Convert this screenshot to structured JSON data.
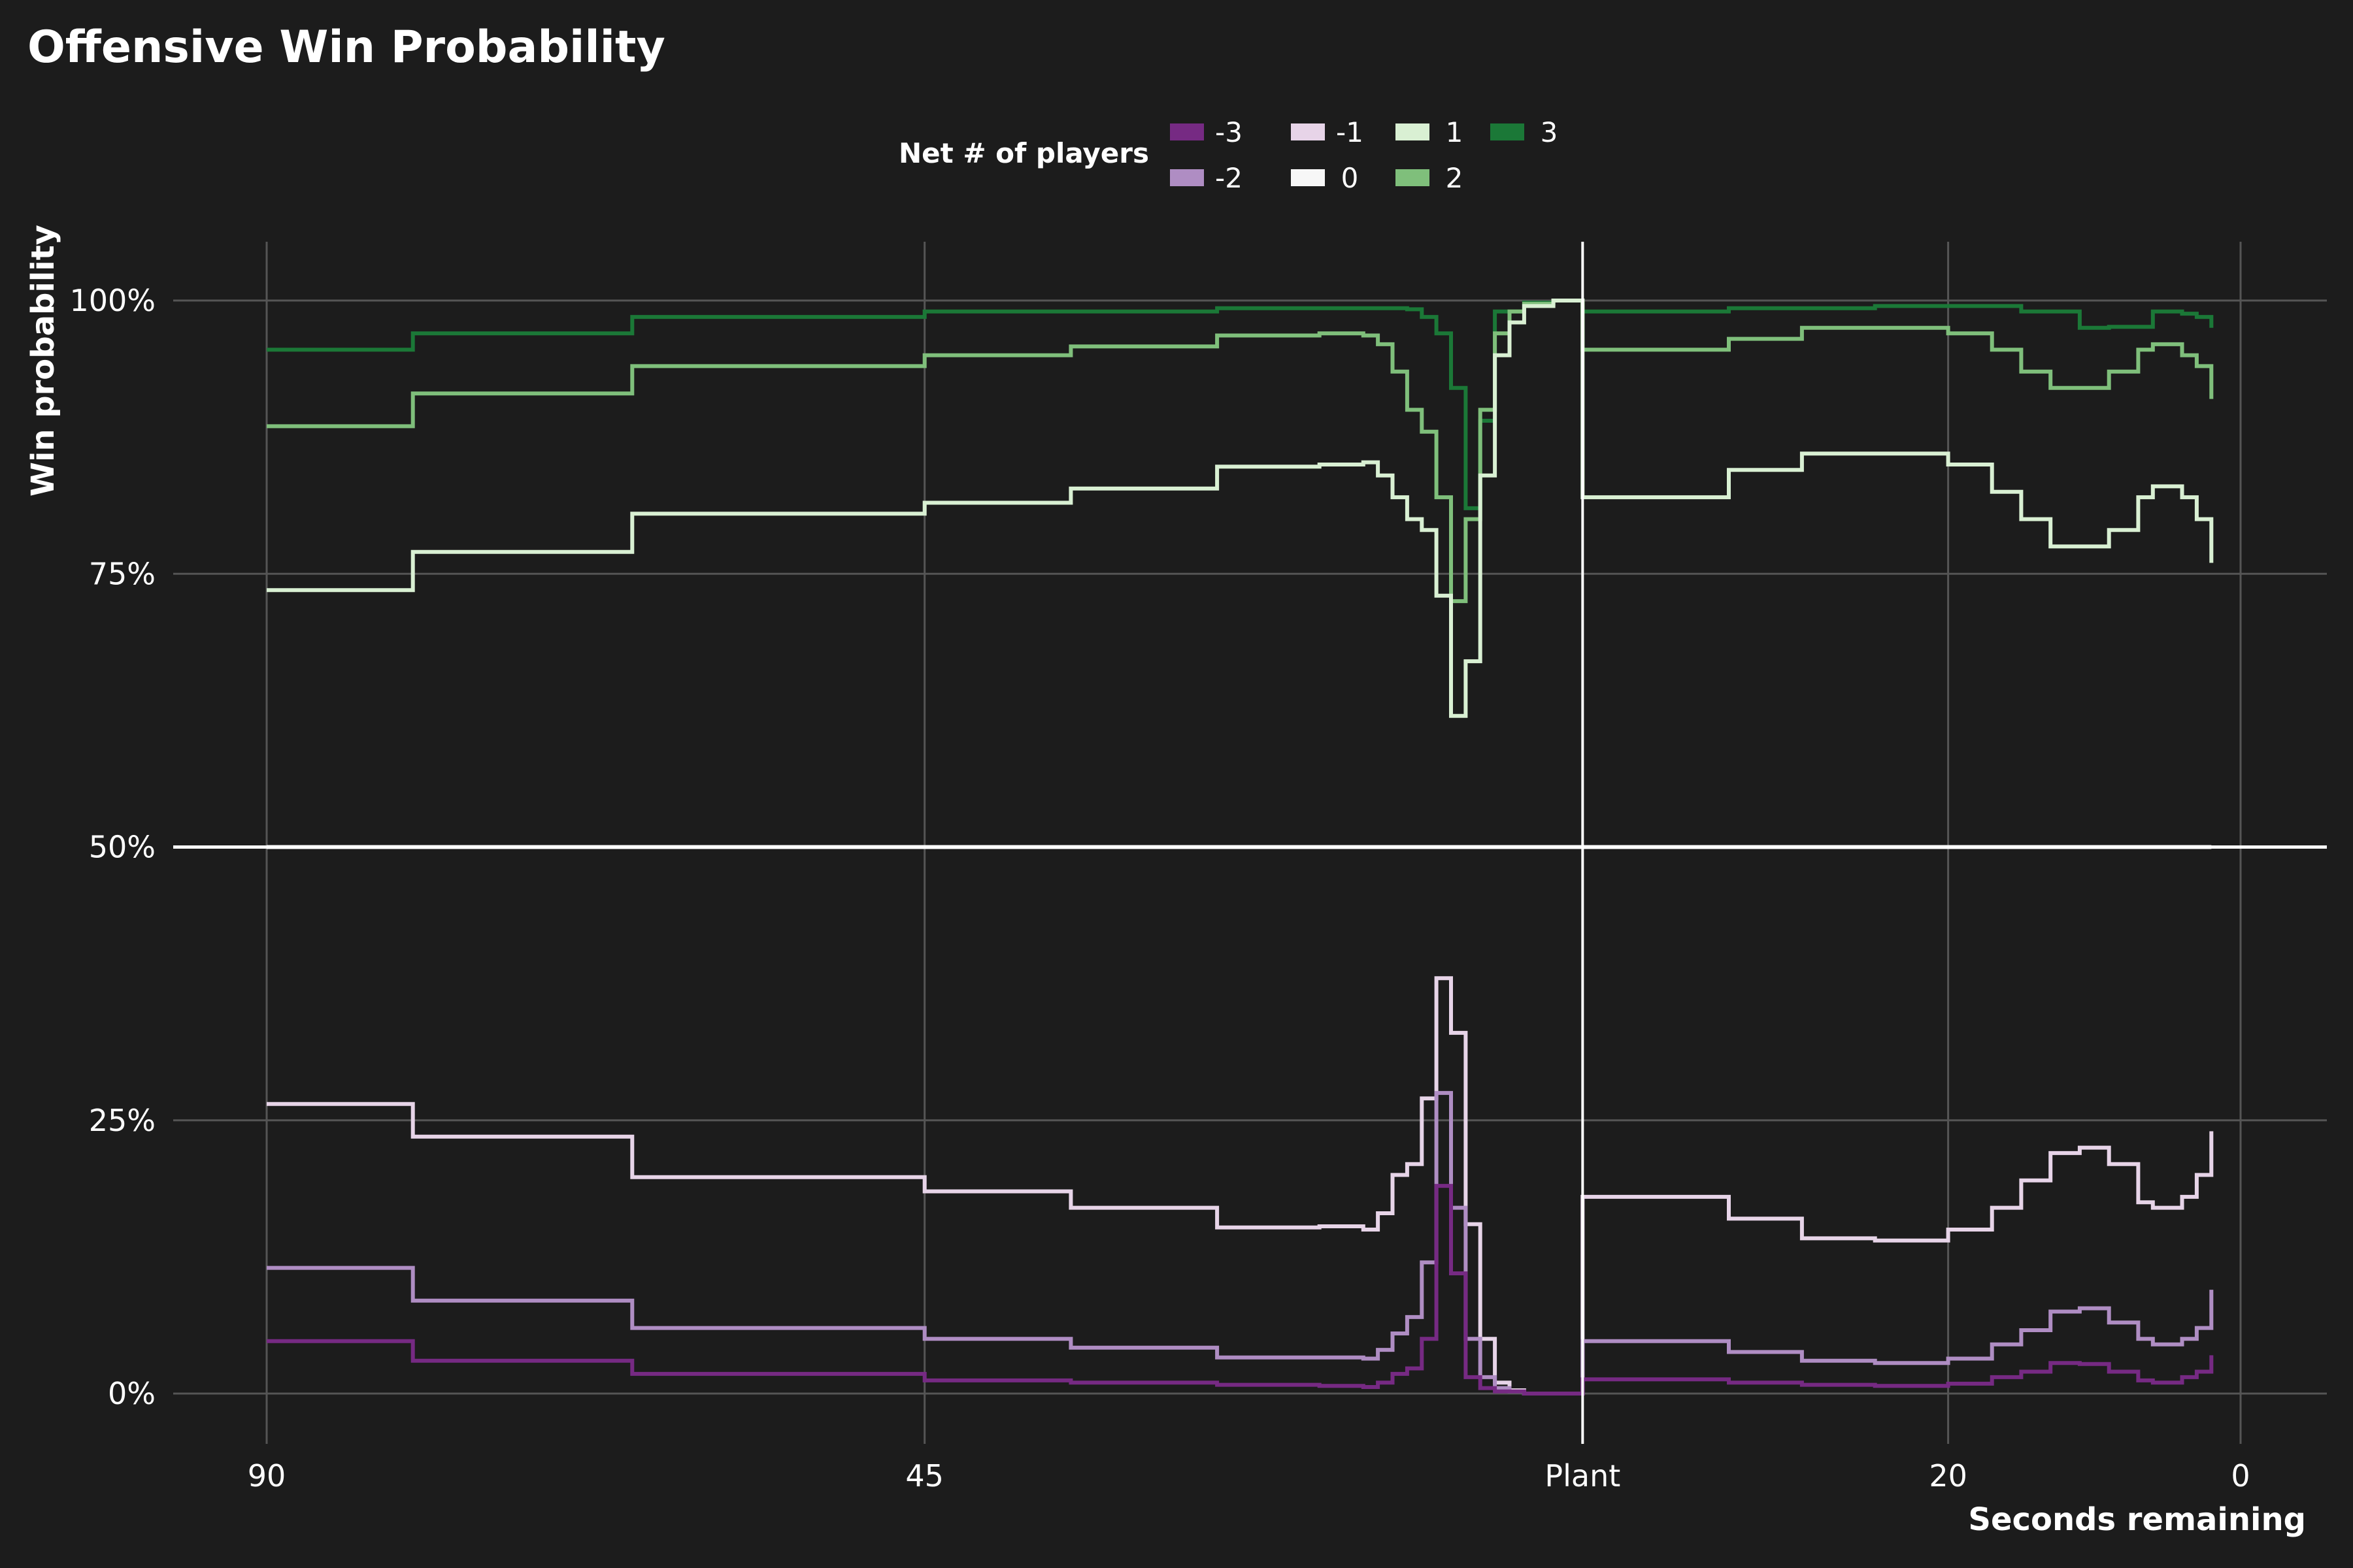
{
  "chart_data": {
    "type": "line",
    "title": "Offensive Win Probability",
    "xlabel": "Seconds remaining",
    "ylabel": "Win probability",
    "legend": {
      "title": "Net # of players",
      "placement": "top-center",
      "entries": [
        "-3",
        "-2",
        "-1",
        "0",
        "1",
        "2",
        "3"
      ]
    },
    "grid": true,
    "step": true,
    "x_reversed": true,
    "x_axis_note": "Pre-plant phase 90 to 0 seconds, then post-plant phase 40 to 0 seconds",
    "xticks": [
      {
        "label": "90",
        "pos": 0
      },
      {
        "label": "45",
        "pos": 45
      },
      {
        "label": "Plant",
        "pos": 90
      },
      {
        "label": "20",
        "pos": 115
      },
      {
        "label": "0",
        "pos": 135
      }
    ],
    "x_range": [
      0,
      135
    ],
    "plant_marker": 90,
    "yticks": [
      {
        "label": "0%",
        "value": 0
      },
      {
        "label": "25%",
        "value": 25
      },
      {
        "label": "50%",
        "value": 50
      },
      {
        "label": "75%",
        "value": 75
      },
      {
        "label": "100%",
        "value": 100
      }
    ],
    "ylim": [
      -4,
      105
    ],
    "series": [
      {
        "name": "3",
        "color": "#1b7837",
        "points": [
          [
            0,
            95.5
          ],
          [
            10,
            97
          ],
          [
            25,
            98.5
          ],
          [
            45,
            99
          ],
          [
            65,
            99.3
          ],
          [
            75,
            99.3
          ],
          [
            78,
            99.2
          ],
          [
            79,
            98.5
          ],
          [
            80,
            97
          ],
          [
            81,
            92
          ],
          [
            82,
            81
          ],
          [
            83,
            89
          ],
          [
            84,
            99
          ],
          [
            86,
            99.8
          ],
          [
            88,
            100
          ],
          [
            90,
            100
          ],
          [
            90,
            99
          ],
          [
            100,
            99.3
          ],
          [
            110,
            99.5
          ],
          [
            115,
            99.5
          ],
          [
            120,
            99
          ],
          [
            124,
            97.5
          ],
          [
            126,
            97.6
          ],
          [
            129,
            99
          ],
          [
            131,
            98.8
          ],
          [
            132,
            98.5
          ],
          [
            133,
            97.5
          ]
        ]
      },
      {
        "name": "2",
        "color": "#7fbf7b",
        "points": [
          [
            0,
            88.5
          ],
          [
            10,
            91.5
          ],
          [
            25,
            94
          ],
          [
            45,
            95
          ],
          [
            55,
            95.8
          ],
          [
            65,
            96.8
          ],
          [
            72,
            97
          ],
          [
            75,
            96.8
          ],
          [
            76,
            96
          ],
          [
            77,
            93.5
          ],
          [
            78,
            90
          ],
          [
            79,
            88
          ],
          [
            80,
            82
          ],
          [
            81,
            72.5
          ],
          [
            82,
            80
          ],
          [
            83,
            90
          ],
          [
            84,
            97
          ],
          [
            85,
            99
          ],
          [
            86,
            99.7
          ],
          [
            88,
            100
          ],
          [
            90,
            100
          ],
          [
            90,
            95.5
          ],
          [
            100,
            96.5
          ],
          [
            105,
            97.5
          ],
          [
            110,
            97.5
          ],
          [
            115,
            97
          ],
          [
            118,
            95.5
          ],
          [
            120,
            93.5
          ],
          [
            122,
            92
          ],
          [
            124,
            92
          ],
          [
            126,
            93.5
          ],
          [
            128,
            95.5
          ],
          [
            129,
            96
          ],
          [
            131,
            95
          ],
          [
            132,
            94
          ],
          [
            133,
            91
          ]
        ]
      },
      {
        "name": "1",
        "color": "#d9f0d3",
        "points": [
          [
            0,
            73.5
          ],
          [
            10,
            77
          ],
          [
            25,
            80.5
          ],
          [
            45,
            81.5
          ],
          [
            55,
            82.8
          ],
          [
            65,
            84.8
          ],
          [
            72,
            85
          ],
          [
            75,
            85.2
          ],
          [
            76,
            84
          ],
          [
            77,
            82
          ],
          [
            78,
            80
          ],
          [
            79,
            79
          ],
          [
            80,
            73
          ],
          [
            81,
            62
          ],
          [
            82,
            67
          ],
          [
            83,
            84
          ],
          [
            84,
            95
          ],
          [
            85,
            98
          ],
          [
            86,
            99.5
          ],
          [
            88,
            100
          ],
          [
            90,
            100
          ],
          [
            90,
            82
          ],
          [
            100,
            84.5
          ],
          [
            105,
            86
          ],
          [
            110,
            86
          ],
          [
            115,
            85
          ],
          [
            118,
            82.5
          ],
          [
            120,
            80
          ],
          [
            122,
            77.5
          ],
          [
            124,
            77.5
          ],
          [
            126,
            79
          ],
          [
            128,
            82
          ],
          [
            129,
            83
          ],
          [
            131,
            82
          ],
          [
            132,
            80
          ],
          [
            133,
            76
          ]
        ]
      },
      {
        "name": "0",
        "color": "#f7f7f7",
        "points": [
          [
            0,
            50
          ],
          [
            133,
            50
          ]
        ]
      },
      {
        "name": "-1",
        "color": "#e7d4e8",
        "points": [
          [
            0,
            26.5
          ],
          [
            10,
            23.5
          ],
          [
            25,
            19.8
          ],
          [
            45,
            18.5
          ],
          [
            55,
            17
          ],
          [
            65,
            15.2
          ],
          [
            72,
            15.3
          ],
          [
            75,
            15
          ],
          [
            76,
            16.5
          ],
          [
            77,
            20
          ],
          [
            78,
            21
          ],
          [
            79,
            27
          ],
          [
            80,
            38
          ],
          [
            81,
            33
          ],
          [
            82,
            15.5
          ],
          [
            83,
            5
          ],
          [
            84,
            1
          ],
          [
            85,
            0.3
          ],
          [
            86,
            0
          ],
          [
            90,
            0
          ],
          [
            90,
            18
          ],
          [
            100,
            16
          ],
          [
            105,
            14.2
          ],
          [
            110,
            14
          ],
          [
            115,
            15
          ],
          [
            118,
            17
          ],
          [
            120,
            19.5
          ],
          [
            122,
            22
          ],
          [
            124,
            22.5
          ],
          [
            126,
            21
          ],
          [
            128,
            17.5
          ],
          [
            129,
            17
          ],
          [
            131,
            18
          ],
          [
            132,
            20
          ],
          [
            133,
            24
          ]
        ]
      },
      {
        "name": "-2",
        "color": "#af8dc3",
        "points": [
          [
            0,
            11.5
          ],
          [
            10,
            8.5
          ],
          [
            25,
            6
          ],
          [
            45,
            5
          ],
          [
            55,
            4.2
          ],
          [
            65,
            3.3
          ],
          [
            72,
            3.3
          ],
          [
            75,
            3.2
          ],
          [
            76,
            4
          ],
          [
            77,
            5.5
          ],
          [
            78,
            7
          ],
          [
            79,
            12
          ],
          [
            80,
            27.5
          ],
          [
            81,
            17
          ],
          [
            82,
            5
          ],
          [
            83,
            1.5
          ],
          [
            84,
            0.5
          ],
          [
            85,
            0.2
          ],
          [
            86,
            0
          ],
          [
            90,
            0
          ],
          [
            90,
            4.8
          ],
          [
            100,
            3.8
          ],
          [
            105,
            3
          ],
          [
            110,
            2.8
          ],
          [
            115,
            3.2
          ],
          [
            118,
            4.5
          ],
          [
            120,
            5.8
          ],
          [
            122,
            7.5
          ],
          [
            124,
            7.8
          ],
          [
            126,
            6.5
          ],
          [
            128,
            5
          ],
          [
            129,
            4.5
          ],
          [
            131,
            5
          ],
          [
            132,
            6
          ],
          [
            133,
            9.5
          ]
        ]
      },
      {
        "name": "-3",
        "color": "#762a83",
        "points": [
          [
            0,
            4.8
          ],
          [
            10,
            3
          ],
          [
            25,
            1.8
          ],
          [
            45,
            1.2
          ],
          [
            55,
            1
          ],
          [
            65,
            0.8
          ],
          [
            72,
            0.7
          ],
          [
            75,
            0.6
          ],
          [
            76,
            1
          ],
          [
            77,
            1.8
          ],
          [
            78,
            2.3
          ],
          [
            79,
            5
          ],
          [
            80,
            19
          ],
          [
            81,
            11
          ],
          [
            82,
            1.5
          ],
          [
            83,
            0.5
          ],
          [
            84,
            0.2
          ],
          [
            86,
            0
          ],
          [
            90,
            0
          ],
          [
            90,
            1.3
          ],
          [
            100,
            1
          ],
          [
            105,
            0.8
          ],
          [
            110,
            0.7
          ],
          [
            115,
            0.9
          ],
          [
            118,
            1.5
          ],
          [
            120,
            2
          ],
          [
            122,
            2.8
          ],
          [
            124,
            2.7
          ],
          [
            126,
            2
          ],
          [
            128,
            1.2
          ],
          [
            129,
            1
          ],
          [
            131,
            1.5
          ],
          [
            132,
            2
          ],
          [
            133,
            3.5
          ]
        ]
      }
    ]
  }
}
